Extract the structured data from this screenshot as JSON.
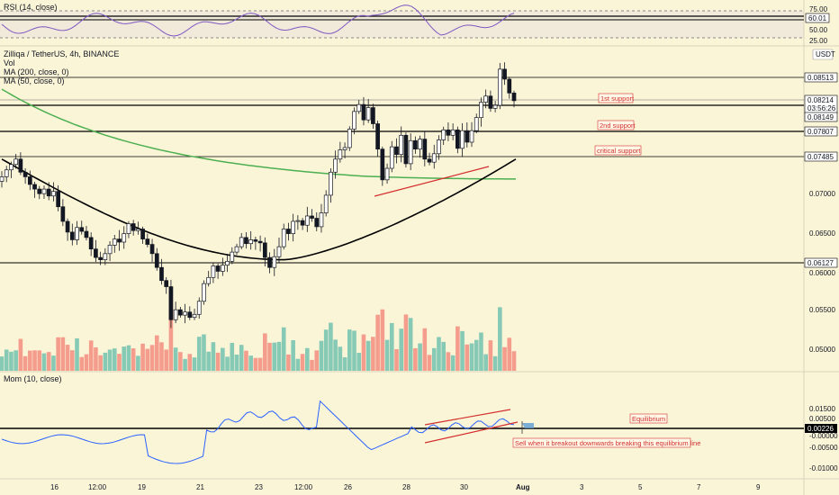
{
  "header": {
    "title": "Zilliqa / TetherUS, 4h, BINANCE",
    "vol_label": "Vol",
    "ma200_label": "MA (200, close, 0)",
    "ma50_label": "MA (50, close, 0)",
    "currency": "USDT"
  },
  "rsi": {
    "label": "RSI (14, close)",
    "ticks": [
      "75.00",
      "60.01",
      "50.00",
      "25.00"
    ],
    "current": "60.01",
    "upper": 70,
    "lower": 30
  },
  "momentum": {
    "label": "Mom (10, close)",
    "ticks": [
      "0.01500",
      "0.01000",
      "0.00500",
      "0.00226",
      "-0.00000",
      "-0.00500",
      "-0.01000"
    ],
    "current": "0.00226",
    "equilibrium_label": "Equilibrium",
    "note": "Sell when it breakout downwards breaking this equilibrium line"
  },
  "annotations": {
    "support1": "1st support",
    "support2": "2nd support",
    "critical": "critical support"
  },
  "price_tags": {
    "p1": "0.08513",
    "p2": "0.08214",
    "countdown": "03:56:26",
    "p3": "0.08149",
    "p4": "0.07807",
    "p5": "0.07485",
    "p6": "0.06127"
  },
  "x_axis": [
    "16",
    "12:00",
    "19",
    "21",
    "23",
    "12:00",
    "26",
    "28",
    "30",
    "Aug",
    "3",
    "5",
    "7",
    "9"
  ],
  "colors": {
    "up": "#26a69a",
    "down": "#ef5350",
    "ma200": "#4caf50",
    "ma50": "#000000",
    "background": "#fbf5d8",
    "annotation": "#d32f2f"
  },
  "chart_data": {
    "type": "candlestick",
    "title": "Zilliqa / TetherUS, 4h, BINANCE",
    "ylim": [
      0.0485,
      0.0875
    ],
    "y_ticks": [
      "0.07000",
      "0.06500",
      "0.06000",
      "0.05500",
      "0.05000"
    ],
    "horizontal_levels": [
      0.08513,
      0.08214,
      0.08149,
      0.07807,
      0.07485,
      0.06127
    ],
    "close_series": [
      0.0722,
      0.0731,
      0.0738,
      0.0745,
      0.0728,
      0.0722,
      0.0712,
      0.0706,
      0.07,
      0.0706,
      0.0697,
      0.0703,
      0.0683,
      0.0664,
      0.065,
      0.064,
      0.0656,
      0.0651,
      0.0643,
      0.0628,
      0.0617,
      0.0614,
      0.0622,
      0.0633,
      0.0641,
      0.0637,
      0.0648,
      0.0661,
      0.0652,
      0.0654,
      0.0641,
      0.0634,
      0.0622,
      0.0604,
      0.0587,
      0.0579,
      0.0536,
      0.0549,
      0.0542,
      0.0546,
      0.0539,
      0.0543,
      0.056,
      0.0583,
      0.0591,
      0.0606,
      0.0599,
      0.0607,
      0.0612,
      0.0624,
      0.0631,
      0.0643,
      0.0635,
      0.064,
      0.0638,
      0.0636,
      0.0617,
      0.0604,
      0.0618,
      0.0631,
      0.0654,
      0.0648,
      0.0664,
      0.0665,
      0.0659,
      0.0671,
      0.0668,
      0.0657,
      0.0675,
      0.0698,
      0.0728,
      0.0745,
      0.0757,
      0.076,
      0.0784,
      0.0807,
      0.0816,
      0.0796,
      0.0812,
      0.0791,
      0.0758,
      0.0718,
      0.0733,
      0.0761,
      0.0751,
      0.0776,
      0.0739,
      0.0769,
      0.0758,
      0.0771,
      0.0745,
      0.0741,
      0.0752,
      0.077,
      0.0783,
      0.0776,
      0.0783,
      0.0759,
      0.0782,
      0.0767,
      0.0782,
      0.0799,
      0.0819,
      0.0827,
      0.0811,
      0.0815,
      0.0862,
      0.0849,
      0.0831,
      0.0821
    ]
  }
}
